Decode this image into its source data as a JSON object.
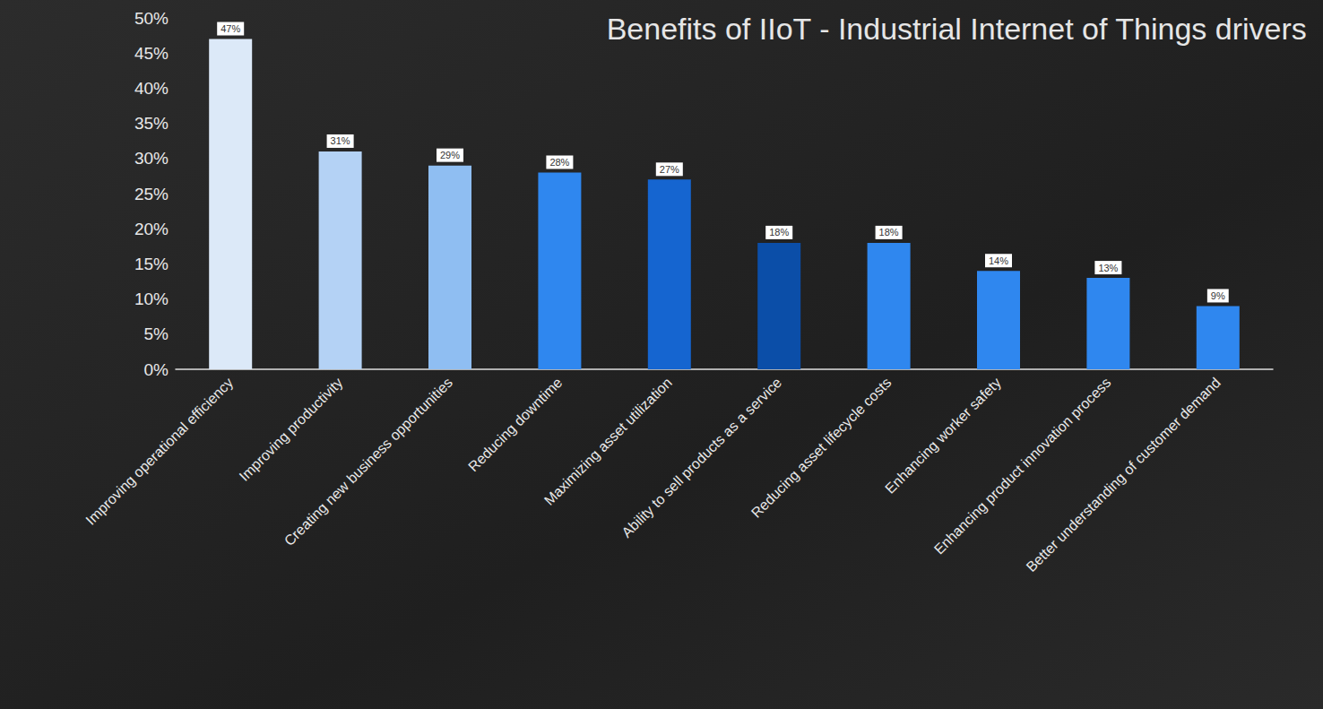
{
  "chart_data": {
    "type": "bar",
    "title": "Benefits of IIoT - Industrial Internet of Things drivers",
    "categories": [
      "Improving operational efficiency",
      "Improving productivity",
      "Creating new business opportunities",
      "Reducing downtime",
      "Maximizing asset utilization",
      "Ability to sell products as a service",
      "Reducing asset lifecycle costs",
      "Enhancing worker safety",
      "Enhancing product innovation process",
      "Better understanding of customer demand"
    ],
    "values": [
      47,
      31,
      29,
      28,
      27,
      18,
      18,
      14,
      13,
      9
    ],
    "value_labels": [
      "47%",
      "31%",
      "29%",
      "28%",
      "27%",
      "18%",
      "18%",
      "14%",
      "13%",
      "9%"
    ],
    "colors": [
      "#dce9f8",
      "#b4d2f5",
      "#8fbef2",
      "#2f87ef",
      "#1565d0",
      "#0b4ea8",
      "#2f87ef",
      "#2f87ef",
      "#2f87ef",
      "#2f87ef"
    ],
    "ylim": [
      0,
      50
    ],
    "yticks": [
      {
        "value": 0,
        "label": "0%"
      },
      {
        "value": 5,
        "label": "5%"
      },
      {
        "value": 10,
        "label": "10%"
      },
      {
        "value": 15,
        "label": "15%"
      },
      {
        "value": 20,
        "label": "20%"
      },
      {
        "value": 25,
        "label": "25%"
      },
      {
        "value": 30,
        "label": "30%"
      },
      {
        "value": 35,
        "label": "35%"
      },
      {
        "value": 40,
        "label": "40%"
      },
      {
        "value": 45,
        "label": "45%"
      },
      {
        "value": 50,
        "label": "50%"
      }
    ],
    "grid": false,
    "data_labels": true
  }
}
